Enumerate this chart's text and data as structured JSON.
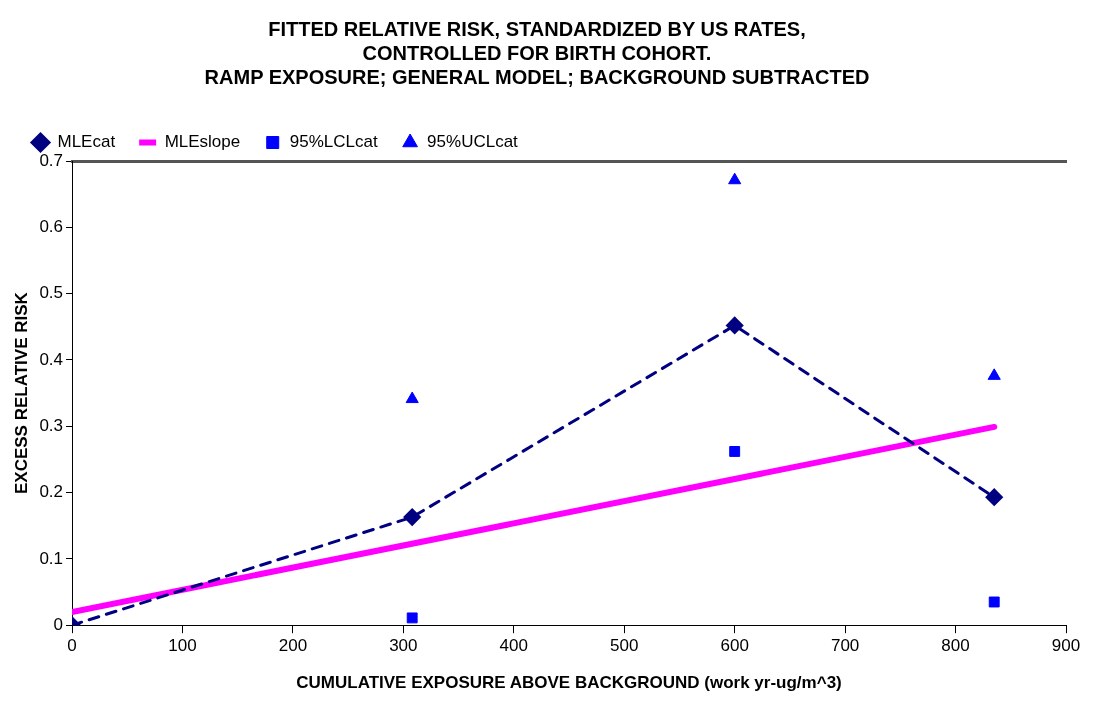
{
  "chart_data": {
    "type": "line",
    "title": [
      "FITTED RELATIVE RISK, STANDARDIZED BY US RATES,",
      "CONTROLLED FOR BIRTH COHORT.",
      "RAMP EXPOSURE; GENERAL MODEL; BACKGROUND SUBTRACTED"
    ],
    "xlabel": "CUMULATIVE EXPOSURE ABOVE BACKGROUND (work yr-ug/m^3)",
    "ylabel": "EXCESS RELATIVE RISK",
    "xlim": [
      0,
      900
    ],
    "xticks": [
      0,
      100,
      200,
      300,
      400,
      500,
      600,
      700,
      800,
      900
    ],
    "ylim": [
      0,
      0.7
    ],
    "yticks": [
      0,
      0.1,
      0.2,
      0.3,
      0.4,
      0.5,
      0.6,
      0.7
    ],
    "grid": false,
    "legend": "top left",
    "series": [
      {
        "name": "MLEcat",
        "type": "line",
        "color": "#000080",
        "marker": "diamond",
        "line_style": "dashed",
        "x": [
          0,
          308,
          600,
          835
        ],
        "values": [
          0,
          0.163,
          0.452,
          0.193
        ]
      },
      {
        "name": "MLEslope",
        "type": "line",
        "color": "#ff00ff",
        "marker": "none",
        "line_style": "solid",
        "x": [
          0,
          835
        ],
        "values": [
          0.02,
          0.299
        ]
      },
      {
        "name": "95%LCLcat",
        "type": "scatter",
        "color": "#0000ff",
        "marker": "square",
        "x": [
          308,
          600,
          835
        ],
        "values": [
          0.011,
          0.262,
          0.035
        ]
      },
      {
        "name": "95%UCLcat",
        "type": "scatter",
        "color": "#0000ff",
        "marker": "triangle",
        "x": [
          308,
          600,
          835
        ],
        "values": [
          0.341,
          0.671,
          0.376
        ]
      }
    ]
  }
}
